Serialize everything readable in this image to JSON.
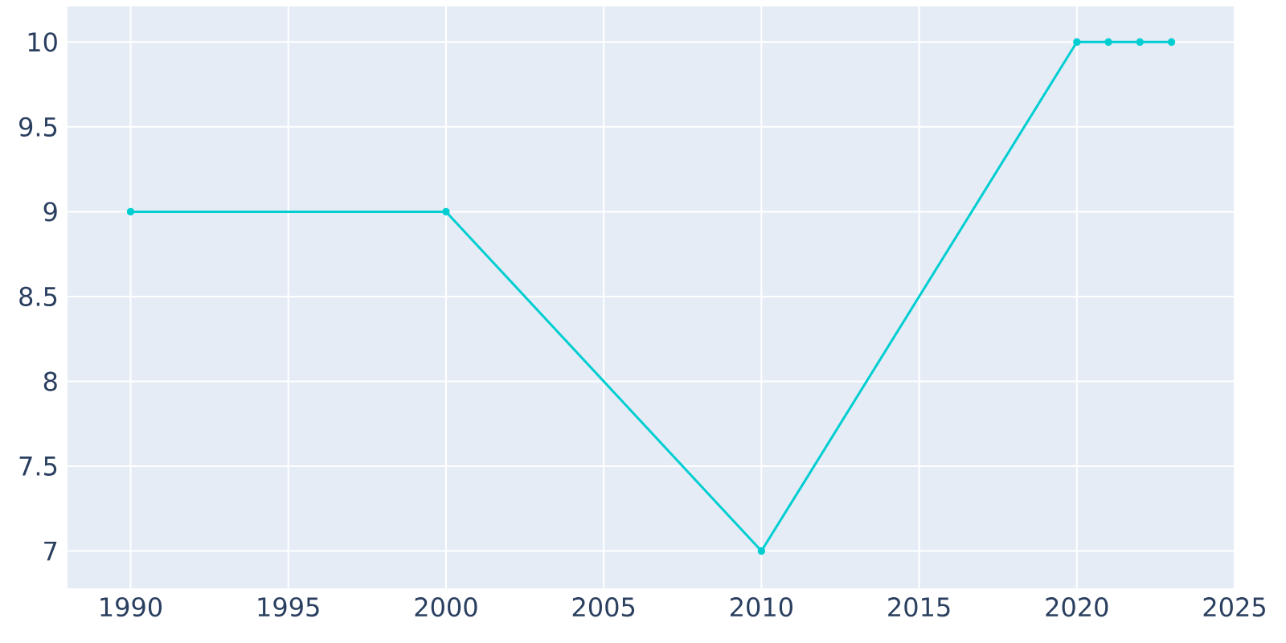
{
  "chart_data": {
    "type": "line",
    "x": [
      1990,
      2000,
      2010,
      2020,
      2021,
      2022,
      2023
    ],
    "series": [
      {
        "color": "#00ced1",
        "values": [
          9,
          9,
          7,
          10,
          10,
          10,
          10
        ]
      }
    ],
    "xlim": [
      1988,
      2025
    ],
    "ylim": [
      6.78,
      10.21
    ],
    "xticks": [
      1990,
      1995,
      2000,
      2005,
      2010,
      2015,
      2020,
      2025
    ],
    "yticks": [
      7,
      7.5,
      8,
      8.5,
      9,
      9.5,
      10
    ],
    "grid": true,
    "marker": "circle",
    "line_style": "solid"
  }
}
